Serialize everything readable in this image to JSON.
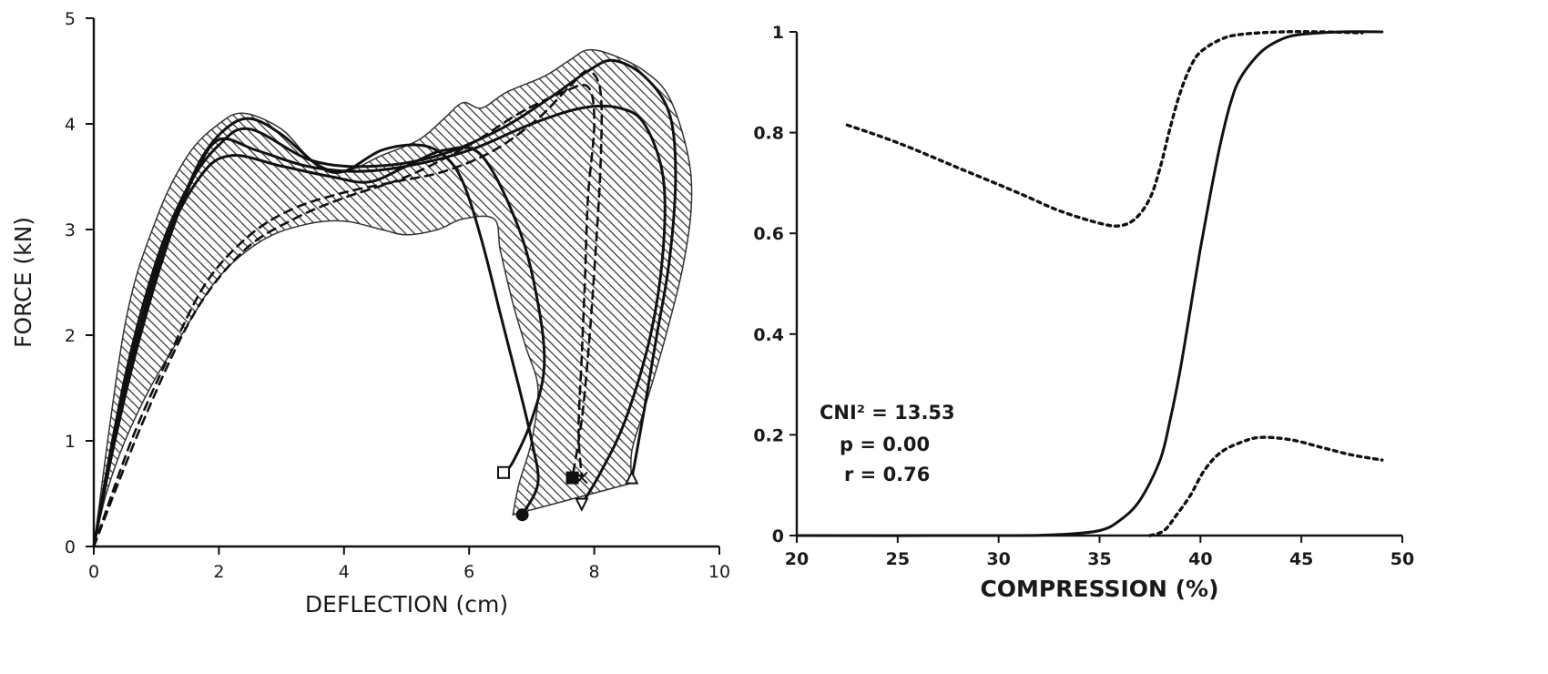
{
  "chart_data": [
    {
      "type": "line",
      "title": "",
      "xlabel": "DEFLECTION (cm)",
      "ylabel": "FORCE (kN)",
      "xlim": [
        0,
        10
      ],
      "ylim": [
        0,
        5
      ],
      "x_ticks": [
        "0",
        "2",
        "4",
        "6",
        "8",
        "10"
      ],
      "y_ticks": [
        "0",
        "1",
        "2",
        "3",
        "4",
        "5"
      ],
      "grid": false,
      "shaded_band": {
        "upper": [
          [
            0,
            0
          ],
          [
            0.5,
            2.1
          ],
          [
            1.0,
            3.1
          ],
          [
            1.5,
            3.7
          ],
          [
            2.0,
            4.0
          ],
          [
            2.4,
            4.1
          ],
          [
            3.0,
            3.95
          ],
          [
            3.5,
            3.65
          ],
          [
            4.0,
            3.55
          ],
          [
            4.6,
            3.7
          ],
          [
            5.2,
            3.85
          ],
          [
            5.6,
            4.05
          ],
          [
            5.9,
            4.2
          ],
          [
            6.2,
            4.15
          ],
          [
            6.6,
            4.3
          ],
          [
            7.2,
            4.45
          ],
          [
            7.6,
            4.6
          ],
          [
            7.9,
            4.7
          ],
          [
            8.3,
            4.65
          ],
          [
            8.8,
            4.5
          ],
          [
            9.2,
            4.25
          ],
          [
            9.5,
            3.7
          ],
          [
            9.55,
            3.2
          ],
          [
            9.4,
            2.6
          ],
          [
            9.1,
            1.9
          ],
          [
            8.8,
            1.3
          ],
          [
            8.6,
            0.9
          ],
          [
            8.6,
            0.6
          ]
        ],
        "lower": [
          [
            0,
            0
          ],
          [
            0.2,
            0.5
          ],
          [
            0.5,
            1.0
          ],
          [
            0.9,
            1.5
          ],
          [
            1.4,
            2.0
          ],
          [
            2.0,
            2.55
          ],
          [
            2.7,
            2.9
          ],
          [
            3.4,
            3.05
          ],
          [
            4.0,
            3.08
          ],
          [
            4.6,
            3.0
          ],
          [
            5.0,
            2.95
          ],
          [
            5.5,
            3.0
          ],
          [
            5.9,
            3.1
          ],
          [
            6.4,
            3.1
          ],
          [
            6.5,
            2.8
          ],
          [
            6.7,
            2.3
          ],
          [
            6.9,
            1.9
          ],
          [
            7.1,
            1.5
          ],
          [
            7.0,
            1.0
          ],
          [
            6.8,
            0.6
          ],
          [
            6.7,
            0.3
          ]
        ]
      },
      "series": [
        {
          "marker": "circle-filled",
          "style": "solid",
          "points": [
            [
              0,
              0
            ],
            [
              0.4,
              1.3
            ],
            [
              0.9,
              2.4
            ],
            [
              1.3,
              3.1
            ],
            [
              1.7,
              3.65
            ],
            [
              2.1,
              3.95
            ],
            [
              2.5,
              4.05
            ],
            [
              3.0,
              3.9
            ],
            [
              3.6,
              3.6
            ],
            [
              4.0,
              3.55
            ],
            [
              4.6,
              3.75
            ],
            [
              5.2,
              3.8
            ],
            [
              5.6,
              3.7
            ],
            [
              5.9,
              3.45
            ],
            [
              6.2,
              2.9
            ],
            [
              6.5,
              2.2
            ],
            [
              6.8,
              1.5
            ],
            [
              7.0,
              1.0
            ],
            [
              7.1,
              0.6
            ],
            [
              6.85,
              0.3
            ]
          ]
        },
        {
          "marker": "square-open",
          "style": "solid",
          "points": [
            [
              0,
              0
            ],
            [
              0.5,
              1.5
            ],
            [
              1.1,
              2.8
            ],
            [
              1.7,
              3.5
            ],
            [
              2.2,
              3.7
            ],
            [
              3.0,
              3.6
            ],
            [
              3.8,
              3.5
            ],
            [
              4.4,
              3.45
            ],
            [
              5.0,
              3.6
            ],
            [
              5.6,
              3.75
            ],
            [
              6.2,
              3.7
            ],
            [
              6.8,
              3.0
            ],
            [
              7.1,
              2.3
            ],
            [
              7.2,
              1.7
            ],
            [
              7.0,
              1.2
            ],
            [
              6.7,
              0.8
            ],
            [
              6.55,
              0.7
            ]
          ]
        },
        {
          "marker": "square-filled",
          "style": "dashed",
          "points": [
            [
              0,
              0
            ],
            [
              0.6,
              1.0
            ],
            [
              1.2,
              1.8
            ],
            [
              1.8,
              2.5
            ],
            [
              2.5,
              2.95
            ],
            [
              3.2,
              3.2
            ],
            [
              4.0,
              3.35
            ],
            [
              4.8,
              3.45
            ],
            [
              5.6,
              3.55
            ],
            [
              6.4,
              3.75
            ],
            [
              7.1,
              4.05
            ],
            [
              7.6,
              4.35
            ],
            [
              7.9,
              4.5
            ],
            [
              8.1,
              4.3
            ],
            [
              8.1,
              3.6
            ],
            [
              8.0,
              2.6
            ],
            [
              7.9,
              1.8
            ],
            [
              7.8,
              1.2
            ],
            [
              7.65,
              0.65
            ]
          ]
        },
        {
          "marker": "triangle-down-open",
          "style": "solid",
          "points": [
            [
              0,
              0
            ],
            [
              0.3,
              0.9
            ],
            [
              0.7,
              1.9
            ],
            [
              1.2,
              2.9
            ],
            [
              1.6,
              3.5
            ],
            [
              2.0,
              3.85
            ],
            [
              2.6,
              3.75
            ],
            [
              3.4,
              3.6
            ],
            [
              4.2,
              3.55
            ],
            [
              5.0,
              3.6
            ],
            [
              6.0,
              3.75
            ],
            [
              7.0,
              4.0
            ],
            [
              7.8,
              4.15
            ],
            [
              8.4,
              4.15
            ],
            [
              8.8,
              4.0
            ],
            [
              9.1,
              3.5
            ],
            [
              9.1,
              2.8
            ],
            [
              8.9,
              2.0
            ],
            [
              8.5,
              1.2
            ],
            [
              8.1,
              0.7
            ],
            [
              7.8,
              0.4
            ]
          ]
        },
        {
          "marker": "triangle-up-open",
          "style": "solid",
          "points": [
            [
              0,
              0
            ],
            [
              0.5,
              1.6
            ],
            [
              1.0,
              2.7
            ],
            [
              1.5,
              3.4
            ],
            [
              2.0,
              3.8
            ],
            [
              2.5,
              3.95
            ],
            [
              3.5,
              3.65
            ],
            [
              4.5,
              3.6
            ],
            [
              5.5,
              3.7
            ],
            [
              6.5,
              3.95
            ],
            [
              7.3,
              4.25
            ],
            [
              7.9,
              4.5
            ],
            [
              8.3,
              4.6
            ],
            [
              8.8,
              4.45
            ],
            [
              9.2,
              4.1
            ],
            [
              9.3,
              3.5
            ],
            [
              9.2,
              2.7
            ],
            [
              9.0,
              2.0
            ],
            [
              8.8,
              1.3
            ],
            [
              8.65,
              0.8
            ],
            [
              8.6,
              0.65
            ]
          ]
        },
        {
          "marker": "x",
          "style": "dashed",
          "points": [
            [
              0,
              0
            ],
            [
              0.8,
              1.2
            ],
            [
              1.6,
              2.2
            ],
            [
              2.4,
              2.8
            ],
            [
              3.2,
              3.1
            ],
            [
              4.0,
              3.3
            ],
            [
              5.0,
              3.5
            ],
            [
              6.0,
              3.8
            ],
            [
              6.8,
              4.1
            ],
            [
              7.5,
              4.3
            ],
            [
              7.9,
              4.35
            ],
            [
              8.0,
              4.0
            ],
            [
              7.9,
              3.3
            ],
            [
              7.85,
              2.5
            ],
            [
              7.8,
              1.8
            ],
            [
              7.75,
              1.1
            ],
            [
              7.8,
              0.65
            ]
          ]
        }
      ]
    },
    {
      "type": "line",
      "title": "",
      "xlabel": "COMPRESSION (%)",
      "ylabel": "",
      "xlim": [
        20,
        50
      ],
      "ylim": [
        0,
        1
      ],
      "x_ticks": [
        "20",
        "25",
        "30",
        "35",
        "40",
        "45",
        "50"
      ],
      "y_ticks": [
        "0",
        "0.2",
        "0.4",
        "0.6",
        "0.8",
        "1"
      ],
      "grid": false,
      "annotations": [
        "CNI² = 13.53",
        "p = 0.00",
        "r = 0.76"
      ],
      "series": [
        {
          "style": "solid",
          "points": [
            [
              20,
              0
            ],
            [
              30,
              0.0
            ],
            [
              33,
              0.002
            ],
            [
              35,
              0.01
            ],
            [
              36,
              0.03
            ],
            [
              37,
              0.07
            ],
            [
              38,
              0.15
            ],
            [
              38.5,
              0.23
            ],
            [
              39,
              0.33
            ],
            [
              39.5,
              0.45
            ],
            [
              40,
              0.57
            ],
            [
              40.5,
              0.68
            ],
            [
              41,
              0.78
            ],
            [
              41.5,
              0.86
            ],
            [
              42,
              0.91
            ],
            [
              43,
              0.96
            ],
            [
              44,
              0.985
            ],
            [
              45,
              0.995
            ],
            [
              47,
              1.0
            ],
            [
              49,
              1.0
            ]
          ]
        },
        {
          "style": "dotted",
          "points": [
            [
              22.5,
              0.815
            ],
            [
              25,
              0.78
            ],
            [
              28,
              0.73
            ],
            [
              31,
              0.68
            ],
            [
              33,
              0.645
            ],
            [
              35,
              0.62
            ],
            [
              36,
              0.615
            ],
            [
              36.8,
              0.63
            ],
            [
              37.5,
              0.67
            ],
            [
              38,
              0.73
            ],
            [
              38.5,
              0.81
            ],
            [
              39,
              0.88
            ],
            [
              39.5,
              0.93
            ],
            [
              40,
              0.96
            ],
            [
              41,
              0.985
            ],
            [
              42,
              0.995
            ],
            [
              44,
              1.0
            ],
            [
              46,
              1.0
            ],
            [
              48,
              0.998
            ]
          ]
        },
        {
          "style": "dotted",
          "points": [
            [
              37.5,
              0
            ],
            [
              38.2,
              0.01
            ],
            [
              38.8,
              0.04
            ],
            [
              39.5,
              0.08
            ],
            [
              40.2,
              0.13
            ],
            [
              41,
              0.165
            ],
            [
              42,
              0.185
            ],
            [
              43,
              0.195
            ],
            [
              44.5,
              0.19
            ],
            [
              46,
              0.175
            ],
            [
              47.5,
              0.16
            ],
            [
              49,
              0.15
            ]
          ]
        }
      ]
    }
  ]
}
